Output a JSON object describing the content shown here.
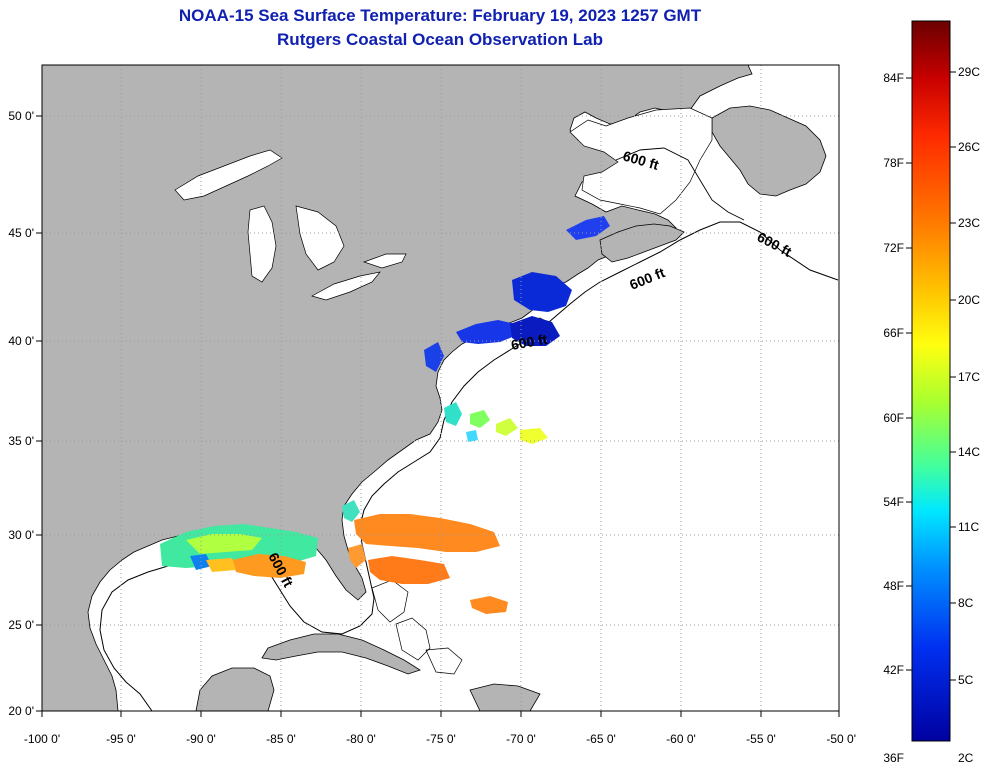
{
  "title": {
    "line1": "NOAA-15 Sea Surface Temperature:  February 19, 2023 1257 GMT",
    "line2": "Rutgers Coastal Ocean Observation Lab"
  },
  "axes": {
    "lon_ticks": [
      "-100 0'",
      "-95 0'",
      "-90 0'",
      "-85 0'",
      "-80 0'",
      "-75 0'",
      "-70 0'",
      "-65 0'",
      "-60 0'",
      "-55 0'",
      "-50 0'"
    ],
    "lat_ticks": [
      "50 0'",
      "45 0'",
      "40 0'",
      "35 0'",
      "30 0'",
      "25 0'",
      "20 0'"
    ]
  },
  "contour_label": "600 ft",
  "colorbar": {
    "fahrenheit_labels": [
      "84F",
      "78F",
      "72F",
      "66F",
      "60F",
      "54F",
      "48F",
      "42F",
      "36F"
    ],
    "celsius_labels": [
      "29C",
      "26C",
      "23C",
      "20C",
      "17C",
      "14C",
      "11C",
      "8C",
      "5C",
      "2C"
    ],
    "colors": [
      "#6b0000",
      "#c80000",
      "#ff2a00",
      "#ff7a00",
      "#ffc800",
      "#ffff10",
      "#a8ff30",
      "#40ffa0",
      "#00e8ff",
      "#0090ff",
      "#0030f0",
      "#0000a0"
    ]
  },
  "colors": {
    "land": "#b4b4b4",
    "ocean": "#ffffff",
    "coast": "#000000",
    "grid": "#9a9a9a",
    "title": "#1020b0"
  }
}
